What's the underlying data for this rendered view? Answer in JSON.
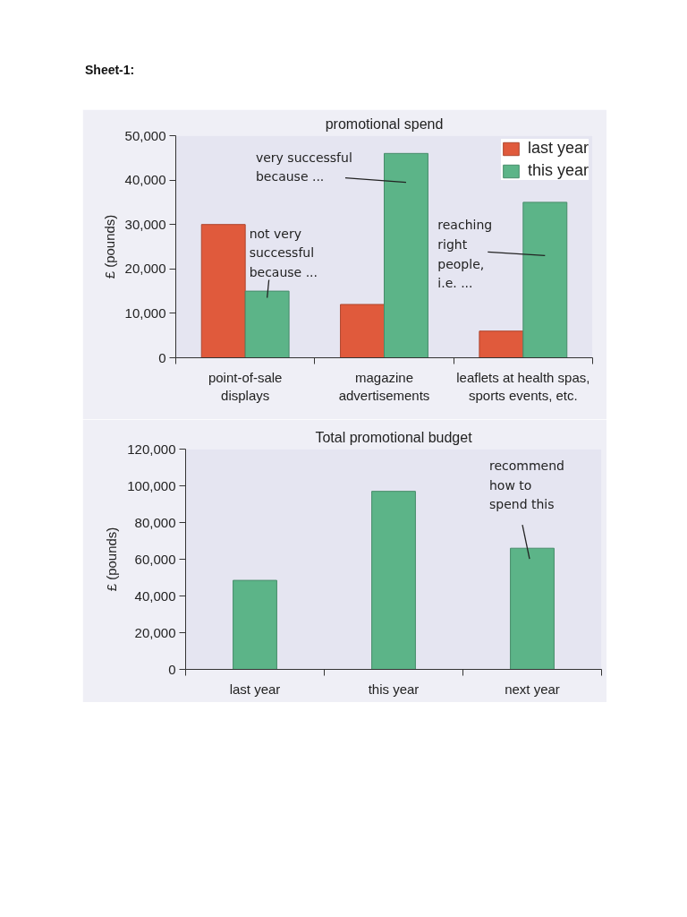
{
  "chart_data": [
    {
      "type": "bar",
      "title": "promotional spend",
      "ylabel": "£ (pounds)",
      "categories": [
        "point-of-sale\ndisplays",
        "magazine\nadvertisements",
        "leaflets at health spas,\nsports events, etc."
      ],
      "series": [
        {
          "name": "last year",
          "color": "#e05a3c",
          "values": [
            30000,
            12000,
            6000
          ]
        },
        {
          "name": "this year",
          "color": "#5cb488",
          "values": [
            15000,
            46000,
            35000
          ]
        }
      ],
      "ylim": [
        0,
        50000
      ],
      "yticks": [
        0,
        {
          "value": 10000,
          "label": "10,000"
        },
        {
          "value": 20000,
          "label": "20,000"
        },
        {
          "value": 30000,
          "label": "30,000"
        },
        {
          "value": 40000,
          "label": "40,000"
        },
        {
          "value": 50000,
          "label": "50,000"
        }
      ],
      "grid": false,
      "legend": "top right",
      "annotations": [
        "Sheet-1:",
        {
          "text": "very successful\nbecause ...",
          "x": "magazine\nadvertisements",
          "y": 39500
        },
        {
          "text": "not very\nsuccessful\nbecause ...",
          "x": "point-of-sale\ndisplays",
          "y": 13500
        },
        {
          "text": "reaching\nright\npeople,\ni.e. ...",
          "x": "leaflets at health spas,\nsports events, etc.",
          "y": 23000
        }
      ]
    },
    {
      "type": "bar",
      "title": "Total promotional budget",
      "ylabel": "£ (pounds)",
      "categories": [
        "last year",
        "this year",
        "next year"
      ],
      "values": [
        48500,
        97000,
        66000
      ],
      "color": "#5cb488",
      "ylim": [
        0,
        120000
      ],
      "yticks": [
        0,
        {
          "value": 20000,
          "label": "20,000"
        },
        {
          "value": 40000,
          "label": "40,000"
        },
        {
          "value": 60000,
          "label": "60,000"
        },
        {
          "value": 80000,
          "label": "80,000"
        },
        {
          "value": 100000,
          "label": "100,000"
        },
        {
          "value": 120000,
          "label": "120,000"
        }
      ],
      "grid": false,
      "annotations": [
        {
          "text": "recommend\nhow to\nspend this",
          "x": "next year",
          "y": 66000
        }
      ]
    }
  ]
}
